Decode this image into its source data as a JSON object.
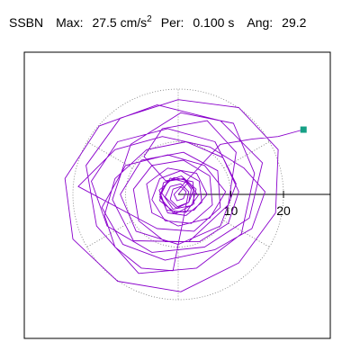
{
  "header": {
    "station": "SSBN",
    "max_label": "Max:",
    "max_value": "27.5",
    "max_unit": "cm/s",
    "max_unit_exp": "2",
    "per_label": "Per:",
    "per_value": "0.100 s",
    "ang_label": "Ang:",
    "ang_value": "29.2"
  },
  "chart_data": {
    "type": "particle-motion",
    "units": "cm/s²",
    "max": 27.5,
    "period_s": 0.1,
    "angle_deg": 29.2,
    "axis_ticks": [
      10,
      20
    ],
    "tick_labels": [
      "10",
      "20"
    ],
    "reference_circles": [
      10,
      20
    ],
    "trace_color": "#8a00cc",
    "marker_color": "#16a085",
    "end_point": [
      23.8,
      12.3
    ],
    "path": [
      [
        0.0,
        0.0
      ],
      [
        1.8,
        2.2
      ],
      [
        -1.5,
        3.1
      ],
      [
        -3.2,
        0.4
      ],
      [
        -1.0,
        -2.8
      ],
      [
        2.6,
        -2.1
      ],
      [
        3.4,
        1.0
      ],
      [
        0.6,
        3.5
      ],
      [
        -2.8,
        2.2
      ],
      [
        -3.5,
        -1.2
      ],
      [
        -0.4,
        -3.6
      ],
      [
        3.0,
        -1.8
      ],
      [
        2.8,
        2.4
      ],
      [
        -0.8,
        3.2
      ],
      [
        -3.6,
        0.8
      ],
      [
        -2.2,
        -3.0
      ],
      [
        1.5,
        -3.4
      ],
      [
        3.8,
        -0.2
      ],
      [
        1.2,
        3.0
      ],
      [
        -2.4,
        2.6
      ],
      [
        -6.5,
        7.2
      ],
      [
        -3.0,
        12.5
      ],
      [
        5.5,
        14.0
      ],
      [
        11.0,
        8.0
      ],
      [
        9.5,
        -2.0
      ],
      [
        2.0,
        -9.0
      ],
      [
        -8.5,
        -8.8
      ],
      [
        -12.5,
        -1.0
      ],
      [
        -9.0,
        9.5
      ],
      [
        0.5,
        15.5
      ],
      [
        10.5,
        13.5
      ],
      [
        14.5,
        4.0
      ],
      [
        12.0,
        -7.5
      ],
      [
        3.5,
        -14.0
      ],
      [
        -7.5,
        -15.0
      ],
      [
        -15.5,
        -6.0
      ],
      [
        -17.5,
        5.5
      ],
      [
        -11.0,
        14.5
      ],
      [
        0.0,
        18.0
      ],
      [
        11.5,
        16.5
      ],
      [
        19.0,
        8.5
      ],
      [
        18.5,
        -3.5
      ],
      [
        11.5,
        -13.0
      ],
      [
        0.5,
        -18.5
      ],
      [
        -11.5,
        -16.5
      ],
      [
        -20.0,
        -8.5
      ],
      [
        -21.5,
        3.0
      ],
      [
        -15.0,
        13.0
      ],
      [
        -4.0,
        17.0
      ],
      [
        8.0,
        14.0
      ],
      [
        16.0,
        6.0
      ],
      [
        13.5,
        -4.5
      ],
      [
        5.0,
        -10.0
      ],
      [
        -5.0,
        -11.0
      ],
      [
        -13.5,
        -6.0
      ],
      [
        -16.5,
        2.5
      ],
      [
        -11.5,
        10.0
      ],
      [
        -2.0,
        12.5
      ],
      [
        7.0,
        10.0
      ],
      [
        11.0,
        2.0
      ],
      [
        8.0,
        -6.0
      ],
      [
        0.0,
        -9.5
      ],
      [
        -8.0,
        -7.0
      ],
      [
        -11.0,
        0.0
      ],
      [
        -7.0,
        6.5
      ],
      [
        1.0,
        8.0
      ],
      [
        7.5,
        4.5
      ],
      [
        8.0,
        -2.5
      ],
      [
        3.0,
        -7.0
      ],
      [
        -4.0,
        -6.5
      ],
      [
        -19.0,
        1.5
      ],
      [
        -12.0,
        8.5
      ],
      [
        -3.0,
        11.0
      ],
      [
        6.0,
        9.0
      ],
      [
        12.5,
        5.0
      ],
      [
        16.5,
        0.5
      ],
      [
        14.0,
        -6.5
      ],
      [
        7.0,
        -10.5
      ],
      [
        -2.5,
        -12.5
      ],
      [
        -10.5,
        -9.5
      ],
      [
        -14.5,
        -2.5
      ],
      [
        -10.0,
        5.5
      ],
      [
        -2.0,
        7.5
      ],
      [
        5.0,
        5.5
      ],
      [
        9.0,
        0.5
      ],
      [
        6.0,
        -4.5
      ],
      [
        0.0,
        -6.0
      ],
      [
        -5.0,
        -3.5
      ],
      [
        -6.0,
        2.0
      ],
      [
        -2.0,
        5.0
      ],
      [
        3.5,
        4.0
      ],
      [
        5.5,
        0.0
      ],
      [
        3.0,
        -3.0
      ],
      [
        -1.0,
        -3.5
      ],
      [
        -3.5,
        -0.5
      ],
      [
        -2.0,
        2.5
      ],
      [
        1.0,
        3.0
      ],
      [
        3.0,
        1.0
      ],
      [
        2.0,
        -1.5
      ],
      [
        -0.5,
        -2.5
      ],
      [
        -2.5,
        -0.5
      ],
      [
        -1.5,
        1.5
      ],
      [
        0.5,
        2.0
      ],
      [
        2.0,
        0.5
      ],
      [
        -1.0,
        -14.5
      ],
      [
        -7.0,
        -14.0
      ],
      [
        -12.0,
        -10.0
      ],
      [
        -14.0,
        -4.0
      ],
      [
        -12.0,
        3.0
      ],
      [
        -6.0,
        8.5
      ],
      [
        1.5,
        10.0
      ],
      [
        8.5,
        7.0
      ],
      [
        11.5,
        0.5
      ],
      [
        9.5,
        -5.5
      ],
      [
        4.0,
        -9.0
      ],
      [
        -2.5,
        -9.0
      ],
      [
        -7.5,
        -5.0
      ],
      [
        -8.5,
        1.0
      ],
      [
        -5.0,
        5.5
      ],
      [
        1.0,
        6.5
      ],
      [
        6.0,
        3.5
      ],
      [
        6.5,
        -2.0
      ],
      [
        2.5,
        -5.5
      ],
      [
        -2.5,
        -5.0
      ],
      [
        -5.0,
        -1.0
      ],
      [
        -3.5,
        3.0
      ],
      [
        0.5,
        4.5
      ],
      [
        4.0,
        2.5
      ],
      [
        4.5,
        -1.5
      ],
      [
        1.5,
        -4.0
      ],
      [
        -2.0,
        -3.5
      ],
      [
        -3.5,
        0.0
      ],
      [
        -2.0,
        2.5
      ],
      [
        1.0,
        3.0
      ],
      [
        2.5,
        1.0
      ],
      [
        2.0,
        -1.5
      ],
      [
        0.0,
        -2.5
      ],
      [
        -1.5,
        -1.0
      ],
      [
        -1.0,
        1.0
      ],
      [
        0.5,
        1.5
      ],
      [
        1.5,
        0.5
      ],
      [
        1.0,
        -0.8
      ],
      [
        -0.2,
        -1.2
      ],
      [
        -0.8,
        0.0
      ],
      [
        8.0,
        9.5
      ],
      [
        14.0,
        10.5
      ],
      [
        19.0,
        11.0
      ],
      [
        23.8,
        12.3
      ]
    ]
  }
}
